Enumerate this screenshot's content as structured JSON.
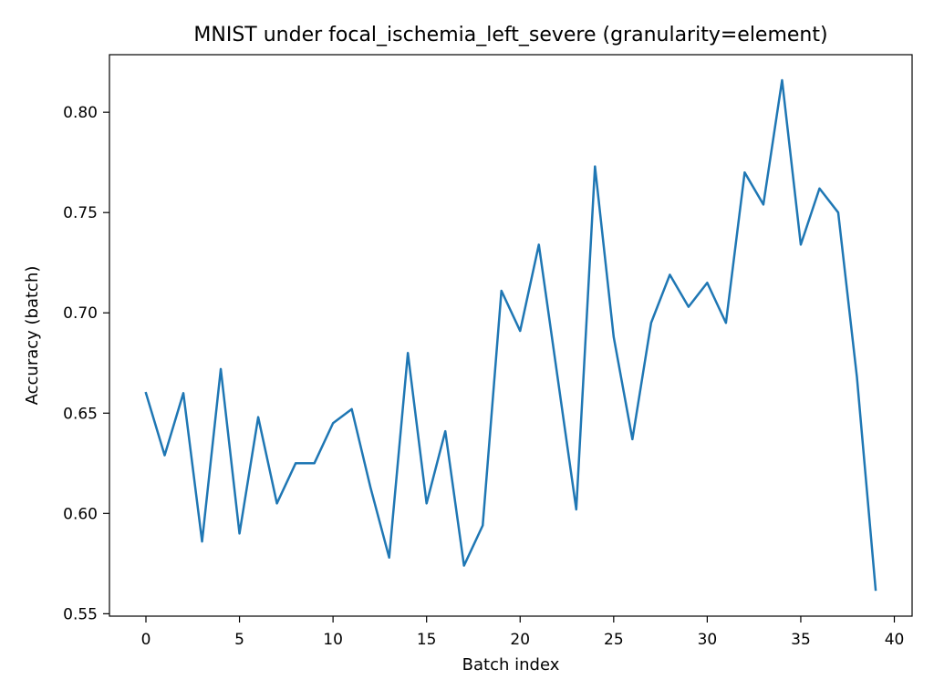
{
  "chart_data": {
    "type": "line",
    "title": "MNIST under focal_ischemia_left_severe (granularity=element)",
    "xlabel": "Batch index",
    "ylabel": "Accuracy (batch)",
    "xlim": [
      -1.95,
      40.95
    ],
    "ylim": [
      0.5488,
      0.8287
    ],
    "x_ticks": [
      0,
      5,
      10,
      15,
      20,
      25,
      30,
      35,
      40
    ],
    "x_tick_labels": [
      "0",
      "5",
      "10",
      "15",
      "20",
      "25",
      "30",
      "35",
      "40"
    ],
    "y_ticks": [
      0.55,
      0.6,
      0.65,
      0.7,
      0.75,
      0.8
    ],
    "y_tick_labels": [
      "0.55",
      "0.60",
      "0.65",
      "0.70",
      "0.75",
      "0.80"
    ],
    "grid": false,
    "line_color": "#1f77b4",
    "series": [
      {
        "x": [
          0,
          1,
          2,
          3,
          4,
          5,
          6,
          7,
          8,
          9,
          10,
          11,
          12,
          13,
          14,
          15,
          16,
          17,
          18,
          19,
          20,
          21,
          22,
          23,
          24,
          25,
          26,
          27,
          28,
          29,
          30,
          31,
          32,
          33,
          34,
          35,
          36,
          37,
          38,
          39
        ],
        "values": [
          0.66,
          0.629,
          0.66,
          0.586,
          0.672,
          0.59,
          0.648,
          0.605,
          0.625,
          0.625,
          0.645,
          0.652,
          0.613,
          0.578,
          0.68,
          0.605,
          0.641,
          0.574,
          0.594,
          0.711,
          0.691,
          0.734,
          0.668,
          0.602,
          0.773,
          0.688,
          0.637,
          0.695,
          0.719,
          0.703,
          0.715,
          0.695,
          0.77,
          0.754,
          0.816,
          0.734,
          0.762,
          0.75,
          0.668,
          0.562
        ]
      }
    ]
  }
}
